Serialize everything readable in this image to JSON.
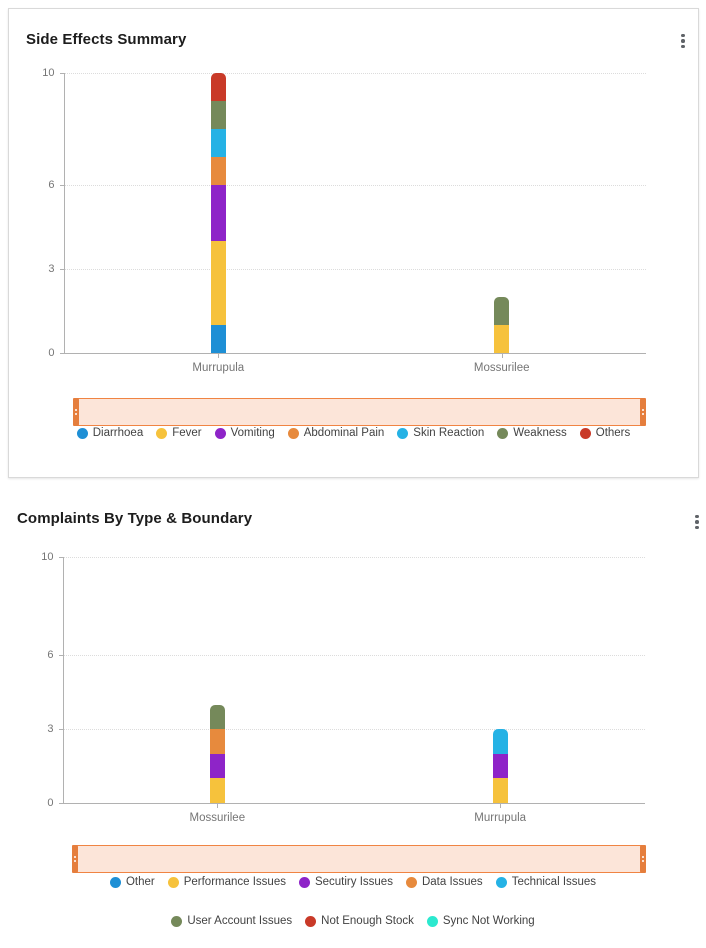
{
  "colors": {
    "range_filter_fill": "#fce5d9",
    "range_filter_border": "#f08443",
    "range_filter_handle": "#e57e3d",
    "axis_line": "#b1b1b1",
    "grid_line": "#dcdcdc"
  },
  "chart_data": [
    {
      "type": "bar",
      "stacked": true,
      "title": "Side Effects Summary",
      "categories": [
        "Murrupula",
        "Mossurilee"
      ],
      "series": [
        {
          "name": "Diarrhoea",
          "color": "#1e8fd5",
          "values": [
            1,
            0
          ]
        },
        {
          "name": "Fever",
          "color": "#f6c23c",
          "values": [
            3,
            1
          ]
        },
        {
          "name": "Vomiting",
          "color": "#8e24c8",
          "values": [
            2,
            0
          ]
        },
        {
          "name": "Abdominal Pain",
          "color": "#e78a3d",
          "values": [
            1,
            0
          ]
        },
        {
          "name": "Skin Reaction",
          "color": "#25b2e5",
          "values": [
            1,
            0
          ]
        },
        {
          "name": "Weakness",
          "color": "#75895a",
          "values": [
            1,
            1
          ]
        },
        {
          "name": "Others",
          "color": "#c93a28",
          "values": [
            1,
            0
          ]
        }
      ],
      "ylim": [
        0,
        10
      ],
      "y_ticks": [
        0,
        3,
        6,
        10
      ],
      "grid": "dotted-horizontal",
      "legend_position": "bottom",
      "legend_rows": [
        [
          0,
          1,
          2,
          3,
          4,
          5,
          6
        ]
      ]
    },
    {
      "type": "bar",
      "stacked": true,
      "title": "Complaints By Type & Boundary",
      "categories": [
        "Mossurilee",
        "Murrupula"
      ],
      "series": [
        {
          "name": "Other",
          "color": "#1e8fd5",
          "values": [
            0,
            0
          ]
        },
        {
          "name": "Performance Issues",
          "color": "#f6c23c",
          "values": [
            1,
            1
          ]
        },
        {
          "name": "Secutiry Issues",
          "color": "#8e24c8",
          "values": [
            1,
            1
          ]
        },
        {
          "name": "Data Issues",
          "color": "#e78a3d",
          "values": [
            1,
            0
          ]
        },
        {
          "name": "Technical Issues",
          "color": "#25b2e5",
          "values": [
            0,
            1
          ]
        },
        {
          "name": "User Account Issues",
          "color": "#75895a",
          "values": [
            1,
            0
          ]
        },
        {
          "name": "Not Enough Stock",
          "color": "#c93a28",
          "values": [
            0,
            0
          ]
        },
        {
          "name": "Sync Not Working",
          "color": "#2be9cf",
          "values": [
            0,
            0
          ]
        }
      ],
      "ylim": [
        0,
        10
      ],
      "y_ticks": [
        0,
        3,
        6,
        10
      ],
      "grid": "dotted-horizontal",
      "legend_position": "bottom",
      "legend_rows": [
        [
          0,
          1,
          2,
          3,
          4
        ],
        [
          5,
          6,
          7
        ]
      ]
    }
  ]
}
